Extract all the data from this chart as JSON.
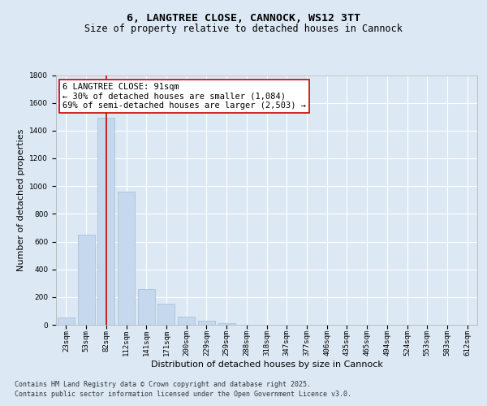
{
  "title": "6, LANGTREE CLOSE, CANNOCK, WS12 3TT",
  "subtitle": "Size of property relative to detached houses in Cannock",
  "xlabel": "Distribution of detached houses by size in Cannock",
  "ylabel": "Number of detached properties",
  "categories": [
    "23sqm",
    "53sqm",
    "82sqm",
    "112sqm",
    "141sqm",
    "171sqm",
    "200sqm",
    "229sqm",
    "259sqm",
    "288sqm",
    "318sqm",
    "347sqm",
    "377sqm",
    "406sqm",
    "435sqm",
    "465sqm",
    "494sqm",
    "524sqm",
    "553sqm",
    "583sqm",
    "612sqm"
  ],
  "values": [
    50,
    650,
    1490,
    960,
    260,
    155,
    60,
    30,
    10,
    2,
    1,
    0,
    0,
    0,
    0,
    0,
    0,
    0,
    0,
    0,
    0
  ],
  "bar_color": "#c5d8ed",
  "bar_edge_color": "#a0bcd8",
  "vline_x": 2,
  "vline_color": "#cc0000",
  "annotation_line1": "6 LANGTREE CLOSE: 91sqm",
  "annotation_line2": "← 30% of detached houses are smaller (1,084)",
  "annotation_line3": "69% of semi-detached houses are larger (2,503) →",
  "annotation_box_color": "#ffffff",
  "annotation_box_edge": "#cc0000",
  "ylim": [
    0,
    1800
  ],
  "yticks": [
    0,
    200,
    400,
    600,
    800,
    1000,
    1200,
    1400,
    1600,
    1800
  ],
  "grid_color": "#ffffff",
  "bg_color": "#dce9f5",
  "plot_bg_color": "#dce9f5",
  "footer_line1": "Contains HM Land Registry data © Crown copyright and database right 2025.",
  "footer_line2": "Contains public sector information licensed under the Open Government Licence v3.0.",
  "title_fontsize": 9.5,
  "subtitle_fontsize": 8.5,
  "tick_fontsize": 6.5,
  "annotation_fontsize": 7.5,
  "ylabel_fontsize": 8,
  "xlabel_fontsize": 8,
  "footer_fontsize": 6
}
